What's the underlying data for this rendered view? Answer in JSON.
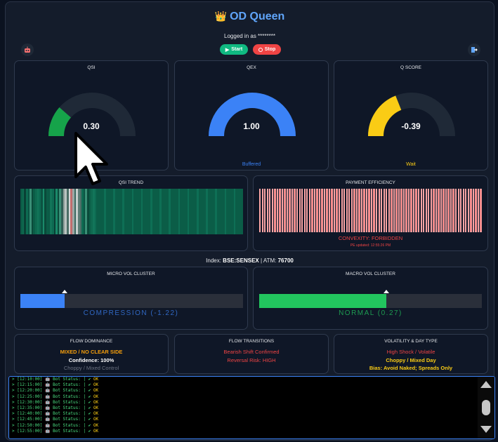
{
  "header": {
    "crown_icon": "👑",
    "title": "OD Queen",
    "logged_in": "Logged in as ********",
    "start_label": "Start",
    "stop_label": "Stop",
    "left_icon": "robot-icon",
    "right_icon": "logout-icon"
  },
  "gauges": [
    {
      "title": "QSI",
      "value": "0.30",
      "fraction": 0.23,
      "color": "#16a34a",
      "sub": ""
    },
    {
      "title": "QEX",
      "value": "1.00",
      "fraction": 1.0,
      "color": "#3b82f6",
      "sub": "Buffered",
      "sub_color": "#3b82f6"
    },
    {
      "title": "Q SCORE",
      "value": "-0.39",
      "fraction": 0.38,
      "color": "#facc15",
      "sub": "Wait",
      "sub_color": "#facc15"
    }
  ],
  "qsi_trend": {
    "title": "QSI TREND"
  },
  "payment": {
    "title": "PAYMENT EFFICIENCY",
    "convexity": "CONVEXITY: FORBIDDEN",
    "updated": "PE updated: 12:55:26 PM"
  },
  "index": {
    "label": "Index:",
    "symbol": "BSE:SENSEX",
    "atm_label": "ATM:",
    "atm_value": "76700"
  },
  "micro": {
    "title": "MICRO VOL CLUSTER",
    "label": "COMPRESSION (-1.22)",
    "fill": 0.2,
    "color": "#3b82f6"
  },
  "macro": {
    "title": "MACRO VOL CLUSTER",
    "label": "NORMAL (0.27)",
    "fill": 0.57,
    "color": "#22c55e"
  },
  "flow_dominance": {
    "title": "FLOW DOMINANCE",
    "line1": "MIXED / NO CLEAR SIDE",
    "line2": "Confidence: 100%",
    "line3": "Choppy / Mixed Control"
  },
  "flow_transitions": {
    "title": "FLOW TRANSITIONS",
    "line1": "Bearish Shift Confirmed",
    "line2": "Reversal Risk: HIGH"
  },
  "volatility": {
    "title": "VOLATILITY & DAY TYPE",
    "line1": "High Shock / Volatile",
    "line2": "Choppy / Mixed Day",
    "line3": "Bias: Avoid Naked; Spreads Only"
  },
  "console": {
    "lines": [
      {
        "time": "> [12:10:00]",
        "text": "Bot Status:",
        "ok": "OK"
      },
      {
        "time": "> [12:15:00]",
        "text": "Bot Status:",
        "ok": "OK"
      },
      {
        "time": "> [12:20:00]",
        "text": "Bot Status:",
        "ok": "OK"
      },
      {
        "time": "> [12:25:00]",
        "text": "Bot Status:",
        "ok": "OK"
      },
      {
        "time": "> [12:30:00]",
        "text": "Bot Status:",
        "ok": "OK"
      },
      {
        "time": "> [12:35:00]",
        "text": "Bot Status:",
        "ok": "OK"
      },
      {
        "time": "> [12:40:00]",
        "text": "Bot Status:",
        "ok": "OK"
      },
      {
        "time": "> [12:45:00]",
        "text": "Bot Status:",
        "ok": "OK"
      },
      {
        "time": "> [12:50:00]",
        "text": "Bot Status:",
        "ok": "OK"
      },
      {
        "time": "> [12:55:00]",
        "text": "Bot Status:",
        "ok": "OK"
      }
    ]
  }
}
